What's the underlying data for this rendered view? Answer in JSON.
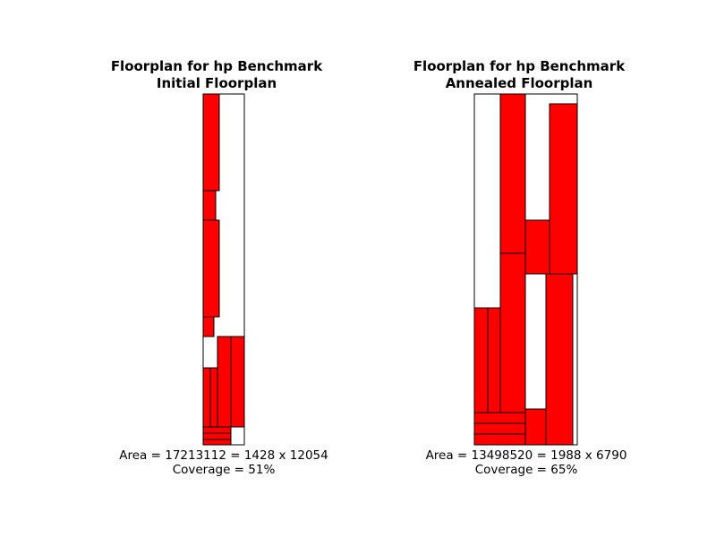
{
  "plots": [
    {
      "title_line1": "Floorplan for hp Benchmark",
      "title_line2": "Initial Floorplan",
      "area_text": "Area = 17213112 = 1428 x 12054",
      "coverage_text": "Coverage = 51%",
      "fill_color": "#ff0000"
    },
    {
      "title_line1": "Floorplan for hp Benchmark",
      "title_line2": "Annealed Floorplan",
      "area_text": "Area = 13498520 = 1988 x 6790",
      "coverage_text": "Coverage = 65%",
      "fill_color": "#ff0000"
    }
  ]
}
